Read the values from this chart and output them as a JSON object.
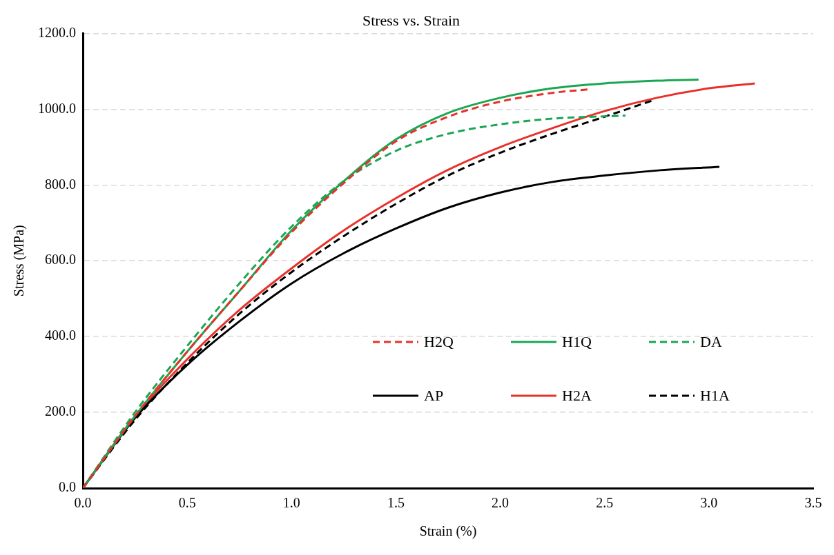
{
  "chart_data": {
    "type": "line",
    "title": "Stress vs. Strain",
    "xlabel": "Strain (%)",
    "ylabel": "Stress (MPa)",
    "xlim": [
      0,
      3.5
    ],
    "xticks": [
      {
        "value": 0,
        "label": "0.0"
      },
      {
        "value": 0.5,
        "label": "0.5"
      },
      {
        "value": 1,
        "label": "1.0"
      },
      {
        "value": 1.5,
        "label": "1.5"
      },
      {
        "value": 2,
        "label": "2.0"
      },
      {
        "value": 2.5,
        "label": "2.5"
      },
      {
        "value": 3,
        "label": "3.0"
      },
      {
        "value": 3.5,
        "label": "3.5"
      }
    ],
    "ylim": [
      0,
      1200
    ],
    "yticks": [
      {
        "value": 0,
        "label": "0.0"
      },
      {
        "value": 200,
        "label": "200.0"
      },
      {
        "value": 400,
        "label": "400.0"
      },
      {
        "value": 600,
        "label": "600.0"
      },
      {
        "value": 800,
        "label": "800.0"
      },
      {
        "value": 1000,
        "label": "1000.0"
      },
      {
        "value": 1200,
        "label": "1200.0"
      }
    ],
    "grid": "y",
    "legend": "bottom right",
    "marker": "none",
    "series": [
      {
        "name": "H2Q",
        "color": "#e8312a",
        "line_style": "dashed",
        "x": [
          0,
          0.25,
          0.5,
          0.75,
          1.0,
          1.25,
          1.5,
          1.75,
          2.0,
          2.25,
          2.42
        ],
        "values": [
          0,
          190,
          360,
          520,
          675,
          805,
          915,
          980,
          1020,
          1043,
          1052
        ]
      },
      {
        "name": "H1Q",
        "color": "#1aa653",
        "line_style": "solid",
        "x": [
          0,
          0.25,
          0.5,
          0.75,
          1.0,
          1.25,
          1.5,
          1.75,
          2.0,
          2.25,
          2.5,
          2.75,
          2.95
        ],
        "values": [
          0,
          190,
          360,
          520,
          680,
          810,
          920,
          990,
          1030,
          1055,
          1068,
          1075,
          1078
        ]
      },
      {
        "name": "DA",
        "color": "#1aa653",
        "line_style": "dashed",
        "x": [
          0,
          0.25,
          0.5,
          0.75,
          1.0,
          1.25,
          1.5,
          1.75,
          2.0,
          2.25,
          2.6
        ],
        "values": [
          0,
          200,
          375,
          540,
          690,
          810,
          890,
          935,
          960,
          975,
          983
        ]
      },
      {
        "name": "AP",
        "color": "#000000",
        "line_style": "solid",
        "x": [
          0,
          0.25,
          0.5,
          0.75,
          1.0,
          1.25,
          1.5,
          1.75,
          2.0,
          2.25,
          2.5,
          2.75,
          3.05
        ],
        "values": [
          0,
          185,
          325,
          440,
          540,
          620,
          685,
          740,
          780,
          808,
          825,
          838,
          848
        ]
      },
      {
        "name": "H2A",
        "color": "#e8312a",
        "line_style": "solid",
        "x": [
          0,
          0.25,
          0.5,
          0.75,
          1.0,
          1.25,
          1.5,
          1.75,
          2.0,
          2.25,
          2.5,
          2.75,
          3.0,
          3.22
        ],
        "values": [
          0,
          190,
          340,
          470,
          580,
          680,
          765,
          840,
          900,
          950,
          995,
          1030,
          1055,
          1068
        ]
      },
      {
        "name": "H1A",
        "color": "#000000",
        "line_style": "dashed",
        "x": [
          0,
          0.25,
          0.5,
          0.75,
          1.0,
          1.25,
          1.5,
          1.75,
          2.0,
          2.25,
          2.5,
          2.74
        ],
        "values": [
          0,
          180,
          330,
          460,
          570,
          665,
          750,
          825,
          885,
          935,
          980,
          1025
        ]
      }
    ]
  }
}
